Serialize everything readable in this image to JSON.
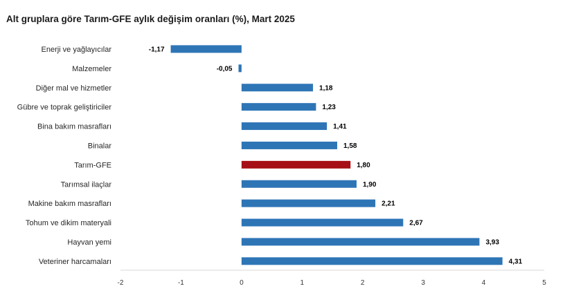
{
  "title": "Alt gruplara göre Tarım-GFE aylık değişim oranları (%), Mart 2025",
  "colors": {
    "bar": "#2e75b6",
    "highlight": "#a50f15",
    "axis": "#d9d9d9"
  },
  "chart_data": {
    "type": "bar",
    "orientation": "horizontal",
    "title": "Alt gruplara göre Tarım-GFE aylık değişim oranları (%), Mart 2025",
    "xlabel": "",
    "ylabel": "",
    "xlim": [
      -2,
      5
    ],
    "ticks": [
      -2,
      -1,
      0,
      1,
      2,
      3,
      4,
      5
    ],
    "tick_labels": [
      "-2",
      "-1",
      "0",
      "1",
      "2",
      "3",
      "4",
      "5"
    ],
    "grid": false,
    "categories": [
      "Enerji  ve yağlayıcılar",
      "Malzemeler",
      "Diğer mal ve hizmetler",
      "Gübre ve toprak geliştiriciler",
      "Bina bakım masrafları",
      "Binalar",
      "Tarım-GFE",
      "Tarımsal ilaçlar",
      "Makine bakım masrafları",
      "Tohum ve dikim materyali",
      "Hayvan yemi",
      "Veteriner harcamaları"
    ],
    "values": [
      -1.17,
      -0.05,
      1.18,
      1.23,
      1.41,
      1.58,
      1.8,
      1.9,
      2.21,
      2.67,
      3.93,
      4.31
    ],
    "value_labels": [
      "-1,17",
      "-0,05",
      "1,18",
      "1,23",
      "1,41",
      "1,58",
      "1,80",
      "1,90",
      "2,21",
      "2,67",
      "3,93",
      "4,31"
    ],
    "highlight": [
      "Tarım-GFE"
    ]
  }
}
